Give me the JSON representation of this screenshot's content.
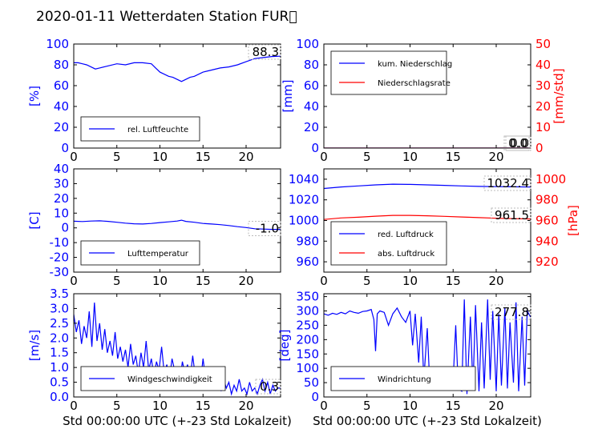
{
  "title": "2020-01-11 Wetterdaten Station FUR\u0000",
  "colors": {
    "blue": "#0000ff",
    "red": "#ff0000",
    "black": "#000000"
  },
  "chart_data": [
    {
      "id": "humidity",
      "type": "line",
      "ylabel": "[%]",
      "xlabel": "",
      "xlim": [
        0,
        24
      ],
      "ylim": [
        0,
        100
      ],
      "xticks": [
        0,
        5,
        10,
        15,
        20
      ],
      "yticks": [
        0,
        20,
        40,
        60,
        80,
        100
      ],
      "ylabel_color": "#0000ff",
      "annotation": "88.3",
      "legend": "bottom-left",
      "series": [
        {
          "name": "rel. Luftfeuchte",
          "color": "#0000ff",
          "x": [
            0,
            0.5,
            1,
            1.5,
            2,
            2.5,
            3,
            4,
            5,
            6,
            7,
            8,
            9,
            9.5,
            10,
            10.5,
            11,
            11.5,
            12,
            12.5,
            13,
            13.5,
            14,
            15,
            16,
            17,
            18,
            19,
            20,
            21,
            22,
            23,
            24
          ],
          "y": [
            82,
            82,
            81,
            80,
            78,
            76,
            77,
            79,
            81,
            80,
            82,
            82,
            81,
            77,
            73,
            71,
            69,
            68,
            66,
            64,
            66,
            68,
            69,
            73,
            75,
            77,
            78,
            80,
            83,
            86,
            87,
            88,
            88.3
          ]
        }
      ]
    },
    {
      "id": "precipitation",
      "type": "line",
      "ylabel": "[mm]",
      "y2label": "[mm/std]",
      "xlabel": "",
      "xlim": [
        0,
        24
      ],
      "ylim": [
        0,
        100
      ],
      "y2lim": [
        0,
        50
      ],
      "xticks": [
        0,
        5,
        10,
        15,
        20
      ],
      "yticks": [
        0,
        20,
        40,
        60,
        80,
        100
      ],
      "y2ticks": [
        0,
        10,
        20,
        30,
        40,
        50
      ],
      "ylabel_color": "#0000ff",
      "y2label_color": "#ff0000",
      "annotation": "0.0",
      "annotation2": "0.0",
      "legend": "top-left",
      "series": [
        {
          "name": "kum. Niederschlag",
          "color": "#0000ff",
          "axis": "left",
          "x": [
            0,
            24
          ],
          "y": [
            0,
            0
          ]
        },
        {
          "name": "Niederschlagsrate",
          "color": "#ff0000",
          "axis": "right",
          "x": [
            0,
            24
          ],
          "y": [
            0,
            0
          ]
        }
      ]
    },
    {
      "id": "temperature",
      "type": "line",
      "ylabel": "[C]",
      "xlabel": "",
      "xlim": [
        0,
        24
      ],
      "ylim": [
        -30,
        40
      ],
      "xticks": [
        0,
        5,
        10,
        15,
        20
      ],
      "yticks": [
        -30,
        -20,
        -10,
        0,
        10,
        20,
        30,
        40
      ],
      "ylabel_color": "#0000ff",
      "annotation": "-1.0",
      "legend": "bottom-left",
      "series": [
        {
          "name": "Lufttemperatur",
          "color": "#0000ff",
          "x": [
            0,
            1,
            2,
            3,
            4,
            5,
            6,
            7,
            8,
            9,
            10,
            11,
            12,
            12.5,
            13,
            14,
            15,
            16,
            17,
            18,
            19,
            20,
            21,
            22,
            23,
            24
          ],
          "y": [
            4.5,
            4.3,
            4.6,
            4.8,
            4.4,
            3.8,
            3.2,
            2.8,
            2.6,
            3.0,
            3.6,
            4.1,
            4.6,
            5.2,
            4.4,
            3.8,
            3.0,
            2.6,
            2.2,
            1.6,
            0.8,
            0.2,
            -0.6,
            -0.8,
            -1.0,
            -1.0
          ]
        }
      ]
    },
    {
      "id": "pressure",
      "type": "line",
      "ylabel": "",
      "y2label": "[hPa]",
      "xlabel": "",
      "xlim": [
        0,
        24
      ],
      "ylim": [
        950,
        1050
      ],
      "y2lim": [
        910,
        1010
      ],
      "xticks": [
        0,
        5,
        10,
        15,
        20
      ],
      "yticks": [
        960,
        980,
        1000,
        1020,
        1040
      ],
      "y2ticks": [
        920,
        940,
        960,
        980,
        1000
      ],
      "y2label_color": "#ff0000",
      "annotation": "1032.4",
      "annotation2": "961.5",
      "legend": "bottom-left",
      "series": [
        {
          "name": "red. Luftdruck",
          "color": "#0000ff",
          "axis": "left",
          "x": [
            0,
            2,
            4,
            6,
            8,
            10,
            12,
            14,
            16,
            18,
            20,
            22,
            24
          ],
          "y": [
            1031,
            1032.5,
            1033.5,
            1034.5,
            1035.2,
            1035.0,
            1034.5,
            1034.0,
            1033.5,
            1033.0,
            1032.8,
            1032.6,
            1032.4
          ]
        },
        {
          "name": "abs. Luftdruck",
          "color": "#ff0000",
          "axis": "right",
          "x": [
            0,
            2,
            4,
            6,
            8,
            10,
            12,
            14,
            16,
            18,
            20,
            22,
            24
          ],
          "y": [
            961,
            962.5,
            963.2,
            964.2,
            965.0,
            965.0,
            964.6,
            964.0,
            963.4,
            962.8,
            962.2,
            961.8,
            961.5
          ]
        }
      ]
    },
    {
      "id": "windspeed",
      "type": "line",
      "ylabel": "[m/s]",
      "xlabel": "Std 00:00:00 UTC (+-23 Std Lokalzeit)",
      "xlim": [
        0,
        24
      ],
      "ylim": [
        0,
        3.5
      ],
      "xticks": [
        0,
        5,
        10,
        15,
        20
      ],
      "yticks": [
        0.0,
        0.5,
        1.0,
        1.5,
        2.0,
        2.5,
        3.0,
        3.5
      ],
      "ylabel_color": "#0000ff",
      "annotation": "0.3",
      "legend": "bottom-left",
      "series": [
        {
          "name": "Windgeschwindigkeit",
          "color": "#0000ff",
          "x": [
            0,
            0.3,
            0.6,
            0.9,
            1.2,
            1.5,
            1.8,
            2.1,
            2.4,
            2.7,
            3.0,
            3.3,
            3.6,
            3.9,
            4.2,
            4.5,
            4.8,
            5.1,
            5.4,
            5.7,
            6.0,
            6.3,
            6.6,
            6.9,
            7.2,
            7.5,
            7.8,
            8.1,
            8.4,
            8.7,
            9.0,
            9.3,
            9.6,
            9.9,
            10.2,
            10.5,
            10.8,
            11.1,
            11.4,
            11.7,
            12.0,
            12.3,
            12.6,
            12.9,
            13.2,
            13.5,
            13.8,
            14.1,
            14.4,
            14.7,
            15.0,
            15.3,
            15.6,
            15.9,
            16.2,
            16.5,
            16.8,
            17.1,
            17.4,
            17.7,
            18.0,
            18.3,
            18.6,
            18.9,
            19.2,
            19.5,
            19.8,
            20.1,
            20.4,
            20.7,
            21.0,
            21.3,
            21.6,
            21.9,
            22.2,
            22.5,
            22.8,
            23.1,
            23.4,
            23.7,
            24.0
          ],
          "y": [
            2.8,
            2.2,
            2.6,
            1.8,
            2.4,
            2.0,
            2.9,
            1.7,
            3.2,
            1.9,
            2.5,
            1.6,
            2.3,
            1.5,
            1.9,
            1.4,
            2.2,
            1.3,
            1.7,
            1.2,
            1.6,
            1.0,
            1.8,
            1.1,
            1.4,
            0.8,
            1.5,
            1.0,
            1.9,
            0.9,
            1.3,
            0.7,
            1.2,
            0.9,
            1.7,
            0.8,
            1.1,
            0.6,
            1.3,
            0.9,
            1.0,
            0.5,
            1.2,
            0.8,
            1.1,
            0.6,
            1.4,
            0.7,
            1.0,
            0.5,
            1.3,
            0.6,
            0.9,
            0.4,
            0.8,
            0.3,
            0.7,
            0.2,
            0.6,
            0.3,
            0.5,
            0.1,
            0.4,
            0.2,
            0.6,
            0.2,
            0.3,
            0.1,
            0.5,
            0.2,
            0.3,
            0.1,
            0.4,
            0.6,
            0.2,
            0.5,
            0.1,
            0.4,
            0.2,
            0.3,
            0.3
          ]
        }
      ]
    },
    {
      "id": "winddirection",
      "type": "line",
      "ylabel": "[deg]",
      "xlabel": "Std 00:00:00 UTC (+-23 Std Lokalzeit)",
      "xlim": [
        0,
        24
      ],
      "ylim": [
        0,
        360
      ],
      "xticks": [
        0,
        5,
        10,
        15,
        20
      ],
      "yticks": [
        0,
        50,
        100,
        150,
        200,
        250,
        300,
        350
      ],
      "ylabel_color": "#0000ff",
      "annotation": "277.8",
      "legend": "bottom-left",
      "series": [
        {
          "name": "Windrichtung",
          "color": "#0000ff",
          "x": [
            0,
            0.5,
            1,
            1.5,
            2,
            2.5,
            3,
            3.5,
            4,
            4.5,
            5,
            5.5,
            5.8,
            6.0,
            6.2,
            6.5,
            7,
            7.5,
            8,
            8.5,
            9,
            9.5,
            10,
            10.3,
            10.6,
            11,
            11.3,
            11.6,
            12,
            12.3,
            12.6,
            13,
            13.5,
            14,
            14.5,
            15,
            15.3,
            15.6,
            16,
            16.3,
            16.6,
            17,
            17.3,
            17.6,
            18,
            18.3,
            18.6,
            19,
            19.3,
            19.6,
            20,
            20.3,
            20.6,
            21,
            21.3,
            21.6,
            22,
            22.3,
            22.6,
            23,
            23.3,
            23.6,
            24
          ],
          "y": [
            290,
            285,
            292,
            288,
            295,
            290,
            300,
            295,
            292,
            298,
            300,
            305,
            270,
            160,
            290,
            300,
            295,
            250,
            290,
            310,
            280,
            260,
            300,
            180,
            290,
            120,
            280,
            60,
            240,
            40,
            90,
            60,
            40,
            50,
            30,
            60,
            250,
            30,
            20,
            340,
            10,
            280,
            30,
            320,
            20,
            260,
            30,
            340,
            60,
            300,
            20,
            290,
            40,
            310,
            30,
            260,
            50,
            330,
            20,
            280,
            40,
            300,
            277.8
          ]
        }
      ]
    }
  ]
}
